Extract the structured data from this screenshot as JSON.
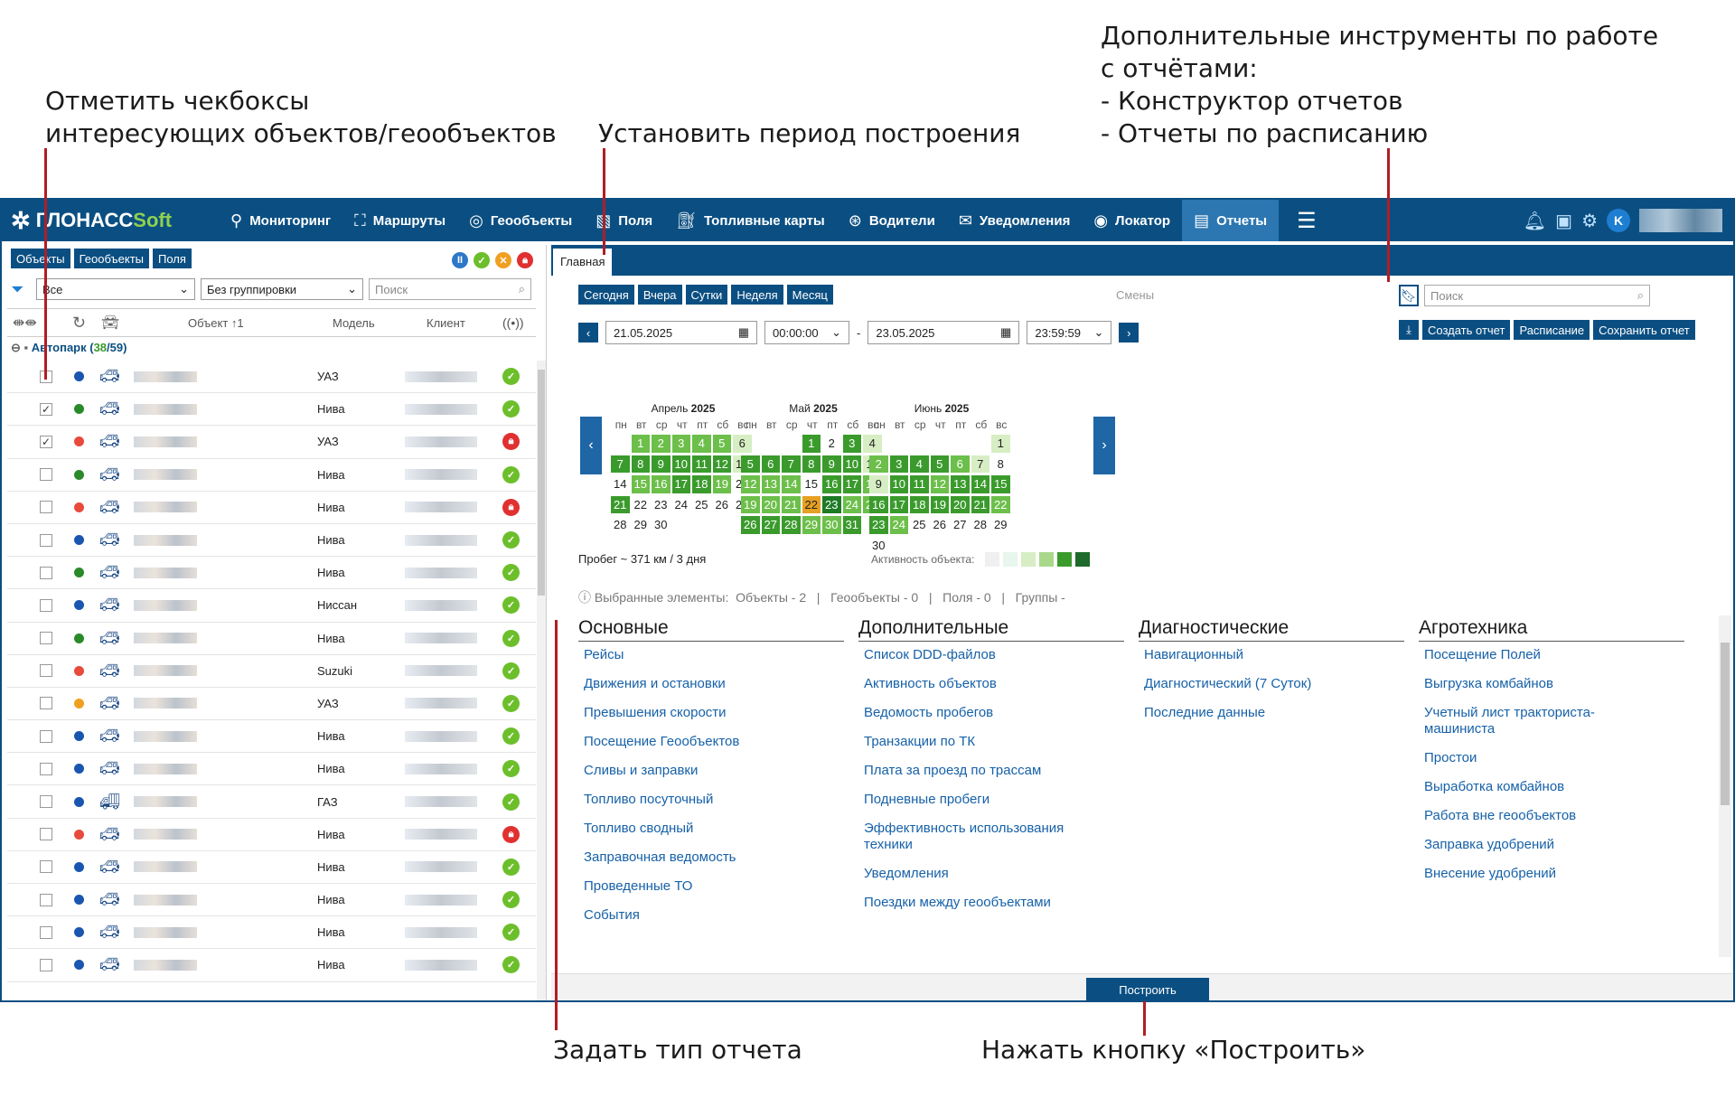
{
  "annotations": {
    "checkboxes": "Отметить чекбоксы\nинтересующих объектов/геообъектов",
    "period": "Установить период построения",
    "tools": "Дополнительные инструменты по работе\nс отчётами:\n- Конструктор отчетов\n- Отчеты по расписанию",
    "report_type": "Задать тип отчета",
    "build": "Нажать кнопку «Построить»"
  },
  "header": {
    "logo_main": "ГЛОНАСС",
    "logo_soft": "Soft",
    "nav": [
      {
        "label": "Мониторинг",
        "icon": "monitor-pin-icon"
      },
      {
        "label": "Маршруты",
        "icon": "route-icon"
      },
      {
        "label": "Геообъекты",
        "icon": "geo-icon"
      },
      {
        "label": "Поля",
        "icon": "field-icon"
      },
      {
        "label": "Топливные карты",
        "icon": "fuel-card-icon"
      },
      {
        "label": "Водители",
        "icon": "steering-wheel-icon"
      },
      {
        "label": "Уведомления",
        "icon": "mail-icon"
      },
      {
        "label": "Локатор",
        "icon": "locator-icon"
      },
      {
        "label": "Отчеты",
        "icon": "report-icon"
      }
    ],
    "avatar_letter": "K"
  },
  "left": {
    "tabs": [
      "Объекты",
      "Геообъекты",
      "Поля"
    ],
    "filter_value": "Все",
    "grouping_value": "Без группировки",
    "search_placeholder": "Поиск",
    "columns": {
      "object": "Объект ↑1",
      "model": "Модель",
      "client": "Клиент"
    },
    "group_name": "Автопарк",
    "group_count_active": "38",
    "group_count_total": "59",
    "rows": [
      {
        "model": "УАЗ",
        "dot": "#1a56b0",
        "checked": false,
        "status": "ok"
      },
      {
        "model": "Нива",
        "dot": "#2a8a2a",
        "checked": true,
        "status": "ok"
      },
      {
        "model": "УАЗ",
        "dot": "#e84a3c",
        "checked": true,
        "status": "lock"
      },
      {
        "model": "Нива",
        "dot": "#2a8a2a",
        "checked": false,
        "status": "ok"
      },
      {
        "model": "Нива",
        "dot": "#e84a3c",
        "checked": false,
        "status": "lock"
      },
      {
        "model": "Нива",
        "dot": "#1a56b0",
        "checked": false,
        "status": "ok"
      },
      {
        "model": "Нива",
        "dot": "#2a8a2a",
        "checked": false,
        "status": "ok"
      },
      {
        "model": "Ниссан",
        "dot": "#1a56b0",
        "checked": false,
        "status": "ok"
      },
      {
        "model": "Нива",
        "dot": "#2a8a2a",
        "checked": false,
        "status": "ok"
      },
      {
        "model": "Suzuki",
        "dot": "#e84a3c",
        "checked": false,
        "status": "ok"
      },
      {
        "model": "УАЗ",
        "dot": "#f0a020",
        "checked": false,
        "status": "ok"
      },
      {
        "model": "Нива",
        "dot": "#1a56b0",
        "checked": false,
        "status": "ok"
      },
      {
        "model": "Нива",
        "dot": "#1a56b0",
        "checked": false,
        "status": "ok"
      },
      {
        "model": "ГАЗ",
        "dot": "#1a56b0",
        "checked": false,
        "status": "ok"
      },
      {
        "model": "Нива",
        "dot": "#e84a3c",
        "checked": false,
        "status": "lock"
      },
      {
        "model": "Нива",
        "dot": "#1a56b0",
        "checked": false,
        "status": "ok"
      },
      {
        "model": "Нива",
        "dot": "#1a56b0",
        "checked": false,
        "status": "ok"
      },
      {
        "model": "Нива",
        "dot": "#1a56b0",
        "checked": false,
        "status": "ok"
      },
      {
        "model": "Нива",
        "dot": "#1a56b0",
        "checked": false,
        "status": "ok"
      }
    ]
  },
  "main": {
    "tab": "Главная",
    "quick": [
      "Сегодня",
      "Вчера",
      "Сутки",
      "Неделя",
      "Месяц"
    ],
    "shifts": "Смены",
    "search_placeholder": "Поиск",
    "actions": [
      "Создать отчет",
      "Расписание",
      "Сохранить отчет"
    ],
    "date_from": "21.05.2025",
    "time_from": "00:00:00",
    "date_sep": "-",
    "date_to": "23.05.2025",
    "time_to": "23:59:59",
    "weekdays": [
      "пн",
      "вт",
      "ср",
      "чт",
      "пт",
      "сб",
      "вс"
    ],
    "months": [
      {
        "name": "Апрель",
        "year": "2025",
        "offset": 1,
        "days": 30,
        "act": {
          "1": 3,
          "2": 3,
          "3": 3,
          "4": 3,
          "5": 3,
          "6": 2,
          "7": 4,
          "8": 4,
          "9": 4,
          "10": 4,
          "11": 4,
          "12": 4,
          "13": 2,
          "15": 3,
          "16": 3,
          "17": 4,
          "18": 4,
          "19": 3,
          "21": 4
        }
      },
      {
        "name": "Май",
        "year": "2025",
        "offset": 3,
        "days": 31,
        "act": {
          "1": 4,
          "3": 4,
          "4": 2,
          "5": 4,
          "6": 4,
          "7": 4,
          "8": 4,
          "9": 4,
          "10": 4,
          "11": 2,
          "12": 3,
          "13": 3,
          "14": 3,
          "16": 4,
          "17": 4,
          "18": 3,
          "19": 3,
          "20": 3,
          "21": 3,
          "22": 7,
          "23": 6,
          "24": 3,
          "25": 3,
          "26": 4,
          "27": 4,
          "28": 4,
          "29": 3,
          "30": 3,
          "31": 4
        }
      },
      {
        "name": "Июнь",
        "year": "2025",
        "offset": 6,
        "days": 30,
        "act": {
          "1": 2,
          "2": 3,
          "3": 4,
          "4": 4,
          "5": 4,
          "6": 3,
          "7": 2,
          "9": 2,
          "10": 4,
          "11": 4,
          "12": 3,
          "13": 4,
          "14": 4,
          "15": 4,
          "16": 4,
          "17": 4,
          "18": 4,
          "19": 4,
          "20": 4,
          "21": 4,
          "22": 3,
          "23": 4,
          "24": 3
        }
      }
    ],
    "mileage": "Пробег ~ 371 км / 3 дня",
    "activity_label": "Активность объекта:",
    "activity_colors": [
      "#f0f0f0",
      "#e8f6ee",
      "#d7eec4",
      "#a8d98a",
      "#3a9b2c",
      "#1d6a2a"
    ],
    "selected": "Выбранные элементы:  Объекты - 2   |   Геообъекты - 0   |   Поля - 0   |   Группы -",
    "categories": [
      {
        "title": "Основные",
        "items": [
          "Рейсы",
          "Движения и остановки",
          "Превышения скорости",
          "Посещение Геообъектов",
          "Сливы и заправки",
          "Топливо посуточный",
          "Топливо сводный",
          "Заправочная ведомость",
          "Проведенные ТО",
          "События"
        ]
      },
      {
        "title": "Дополнительные",
        "items": [
          "Список DDD-файлов",
          "Активность объектов",
          "Ведомость пробегов",
          "Транзакции по ТК",
          "Плата за проезд по трассам",
          "Подневные пробеги",
          "Эффективность использования техники",
          "Уведомления",
          "Поездки между геообъектами"
        ]
      },
      {
        "title": "Диагностические",
        "items": [
          "Навигационный",
          "Диагностический (7 Суток)",
          "Последние данные"
        ]
      },
      {
        "title": "Агротехника",
        "items": [
          "Посещение Полей",
          "Выгрузка комбайнов",
          "Учетный лист тракториста-машиниста",
          "Простои",
          "Выработка комбайнов",
          "Работа вне геообъектов",
          "Заправка удобрений",
          "Внесение удобрений"
        ]
      }
    ],
    "build_label": "Построить"
  }
}
